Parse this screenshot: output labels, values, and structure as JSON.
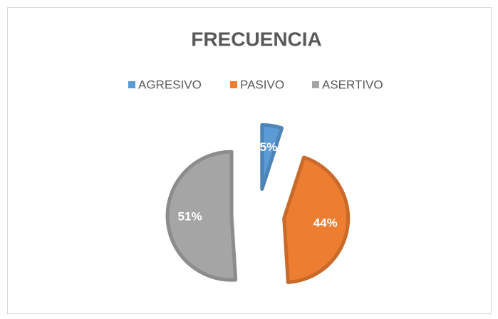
{
  "chart_data": {
    "type": "pie",
    "title": "FRECUENCIA",
    "categories": [
      "AGRESIVO",
      "PASIVO",
      "ASERTIVO"
    ],
    "values": [
      5,
      44,
      51
    ],
    "value_labels": [
      "5%",
      "44%",
      "51%"
    ],
    "colors": [
      "#5b9bd5",
      "#ed7d31",
      "#a5a5a5"
    ],
    "exploded": true,
    "legend": "top"
  }
}
